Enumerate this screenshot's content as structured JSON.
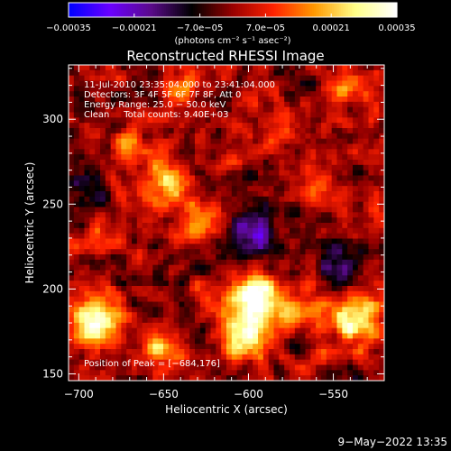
{
  "chart_data": {
    "type": "heatmap",
    "title": "Reconstructed RHESSI Image",
    "xlabel": "Heliocentric X (arcsec)",
    "ylabel": "Heliocentric Y (arcsec)",
    "xlim": [
      -706,
      -520
    ],
    "ylim": [
      146,
      332
    ],
    "x_ticks": [
      -700,
      -650,
      -600,
      -550
    ],
    "x_tick_labels": [
      "−700",
      "−650",
      "−600",
      "−550"
    ],
    "y_ticks": [
      150,
      200,
      250,
      300
    ],
    "y_tick_labels": [
      "150",
      "200",
      "250",
      "300"
    ],
    "colorbar": {
      "min": -0.00035,
      "max": 0.00035,
      "ticks": [
        -0.00035,
        -0.00021,
        -7e-05,
        7e-05,
        0.00021,
        0.00035
      ],
      "tick_labels": [
        "−0.00035",
        "−0.00021",
        "−7.0e−05",
        "7.0e−05",
        "0.00021",
        "0.00035"
      ],
      "units_label": "(photons cm⁻² s⁻¹ asec⁻²)"
    },
    "colormap": [
      "#0000ff",
      "#6a00ff",
      "#5a0a8a",
      "#000000",
      "#990000",
      "#ff2200",
      "#ff9900",
      "#ffff88",
      "#ffffff"
    ],
    "annotations": {
      "time_range": "11-Jul-2010 23:35:04.000 to 23:41:04.000",
      "detectors": "Detectors: 3F 4F 5F 6F 7F 8F, Att 0",
      "energy_range": "Energy Range: 25.0 − 50.0 keV",
      "clean_counts": "Clean     Total counts: 9.40E+03",
      "peak": "Position of Peak = [−684,176]"
    },
    "peak_position": [
      -684,
      176
    ],
    "sources": [
      {
        "x": -690,
        "y": 180,
        "amplitude": 0.00034,
        "sigma": 10
      },
      {
        "x": -596,
        "y": 196,
        "amplitude": 0.00036,
        "sigma": 11
      },
      {
        "x": -603,
        "y": 172,
        "amplitude": 0.00032,
        "sigma": 10
      },
      {
        "x": -648,
        "y": 262,
        "amplitude": 0.00024,
        "sigma": 9
      },
      {
        "x": -625,
        "y": 240,
        "amplitude": 0.00021,
        "sigma": 9
      },
      {
        "x": -672,
        "y": 282,
        "amplitude": 0.00014,
        "sigma": 8
      },
      {
        "x": -538,
        "y": 182,
        "amplitude": 0.00028,
        "sigma": 10
      },
      {
        "x": -568,
        "y": 188,
        "amplitude": 0.00017,
        "sigma": 8
      },
      {
        "x": -542,
        "y": 320,
        "amplitude": 0.0002,
        "sigma": 8
      },
      {
        "x": -562,
        "y": 262,
        "amplitude": 0.00016,
        "sigma": 8
      },
      {
        "x": -640,
        "y": 318,
        "amplitude": 0.00015,
        "sigma": 8
      },
      {
        "x": -580,
        "y": 297,
        "amplitude": 0.00012,
        "sigma": 7
      },
      {
        "x": -688,
        "y": 232,
        "amplitude": 0.00013,
        "sigma": 7
      },
      {
        "x": -653,
        "y": 162,
        "amplitude": 0.00022,
        "sigma": 7
      },
      {
        "x": -600,
        "y": 232,
        "amplitude": -0.0002,
        "sigma": 14
      },
      {
        "x": -548,
        "y": 212,
        "amplitude": -0.00012,
        "sigma": 10
      },
      {
        "x": -700,
        "y": 262,
        "amplitude": -0.0001,
        "sigma": 10
      }
    ],
    "noise_amplitude": 0.00011,
    "date_stamp": "9−May−2022 13:35"
  }
}
